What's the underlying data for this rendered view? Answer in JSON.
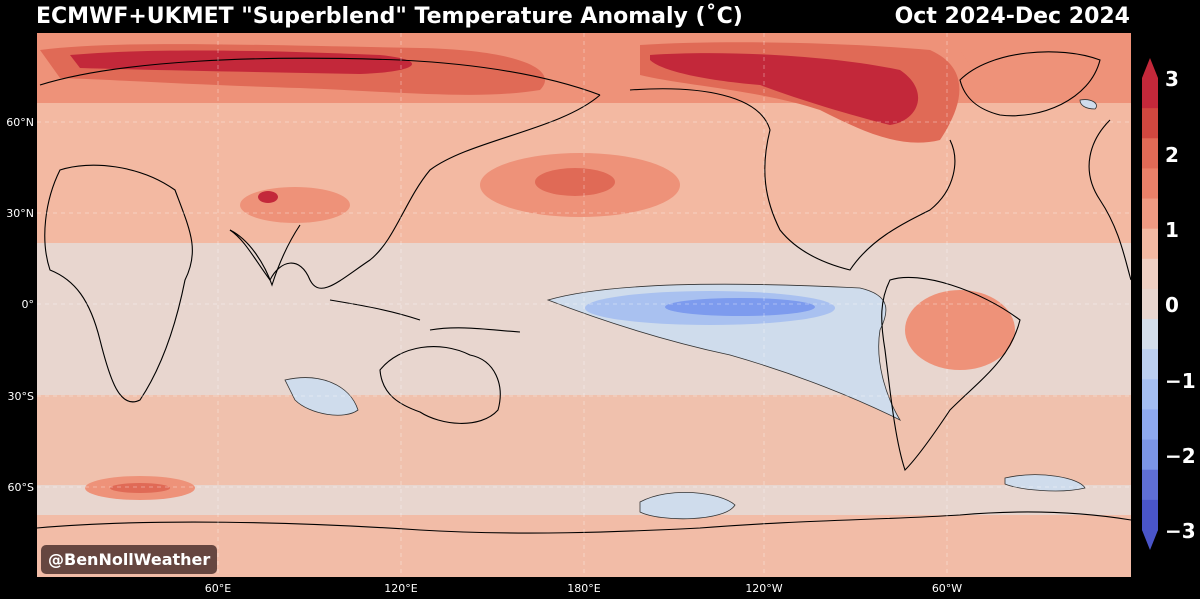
{
  "header": {
    "title": "ECMWF+UKMET \"Superblend\" Temperature Anomaly (˚C)",
    "period": "Oct 2024-Dec 2024"
  },
  "map": {
    "lat_labels": [
      "60°N",
      "30°N",
      "0°",
      "30°S",
      "60°S"
    ],
    "lon_labels": [
      "60°E",
      "120°E",
      "180°E",
      "120°W",
      "60°W"
    ],
    "colors": {
      "background": "#000000",
      "ocean_base": "#e8d6cf",
      "warm_1": "#f3b9a2",
      "warm_2": "#ee9279",
      "warm_3": "#e06a56",
      "warm_4": "#c3283a",
      "cool_1": "#cfdcec",
      "cool_2": "#a9c1f0",
      "cool_3": "#7d9bee",
      "coast": "#000000",
      "grid": "#ffffff"
    }
  },
  "colorbar": {
    "tick_labels": [
      "3",
      "2",
      "1",
      "0",
      "−1",
      "−2",
      "−3"
    ],
    "colors": [
      "#c3283a",
      "#d0473f",
      "#e06a56",
      "#ea8068",
      "#ef9a82",
      "#f3b9a2",
      "#efd0c3",
      "#e8d6cf",
      "#d4deea",
      "#bccff0",
      "#a4bef2",
      "#8ea9f0",
      "#7b95e6",
      "#5f6fd6",
      "#4a55c9"
    ]
  },
  "watermark": "@BenNollWeather"
}
